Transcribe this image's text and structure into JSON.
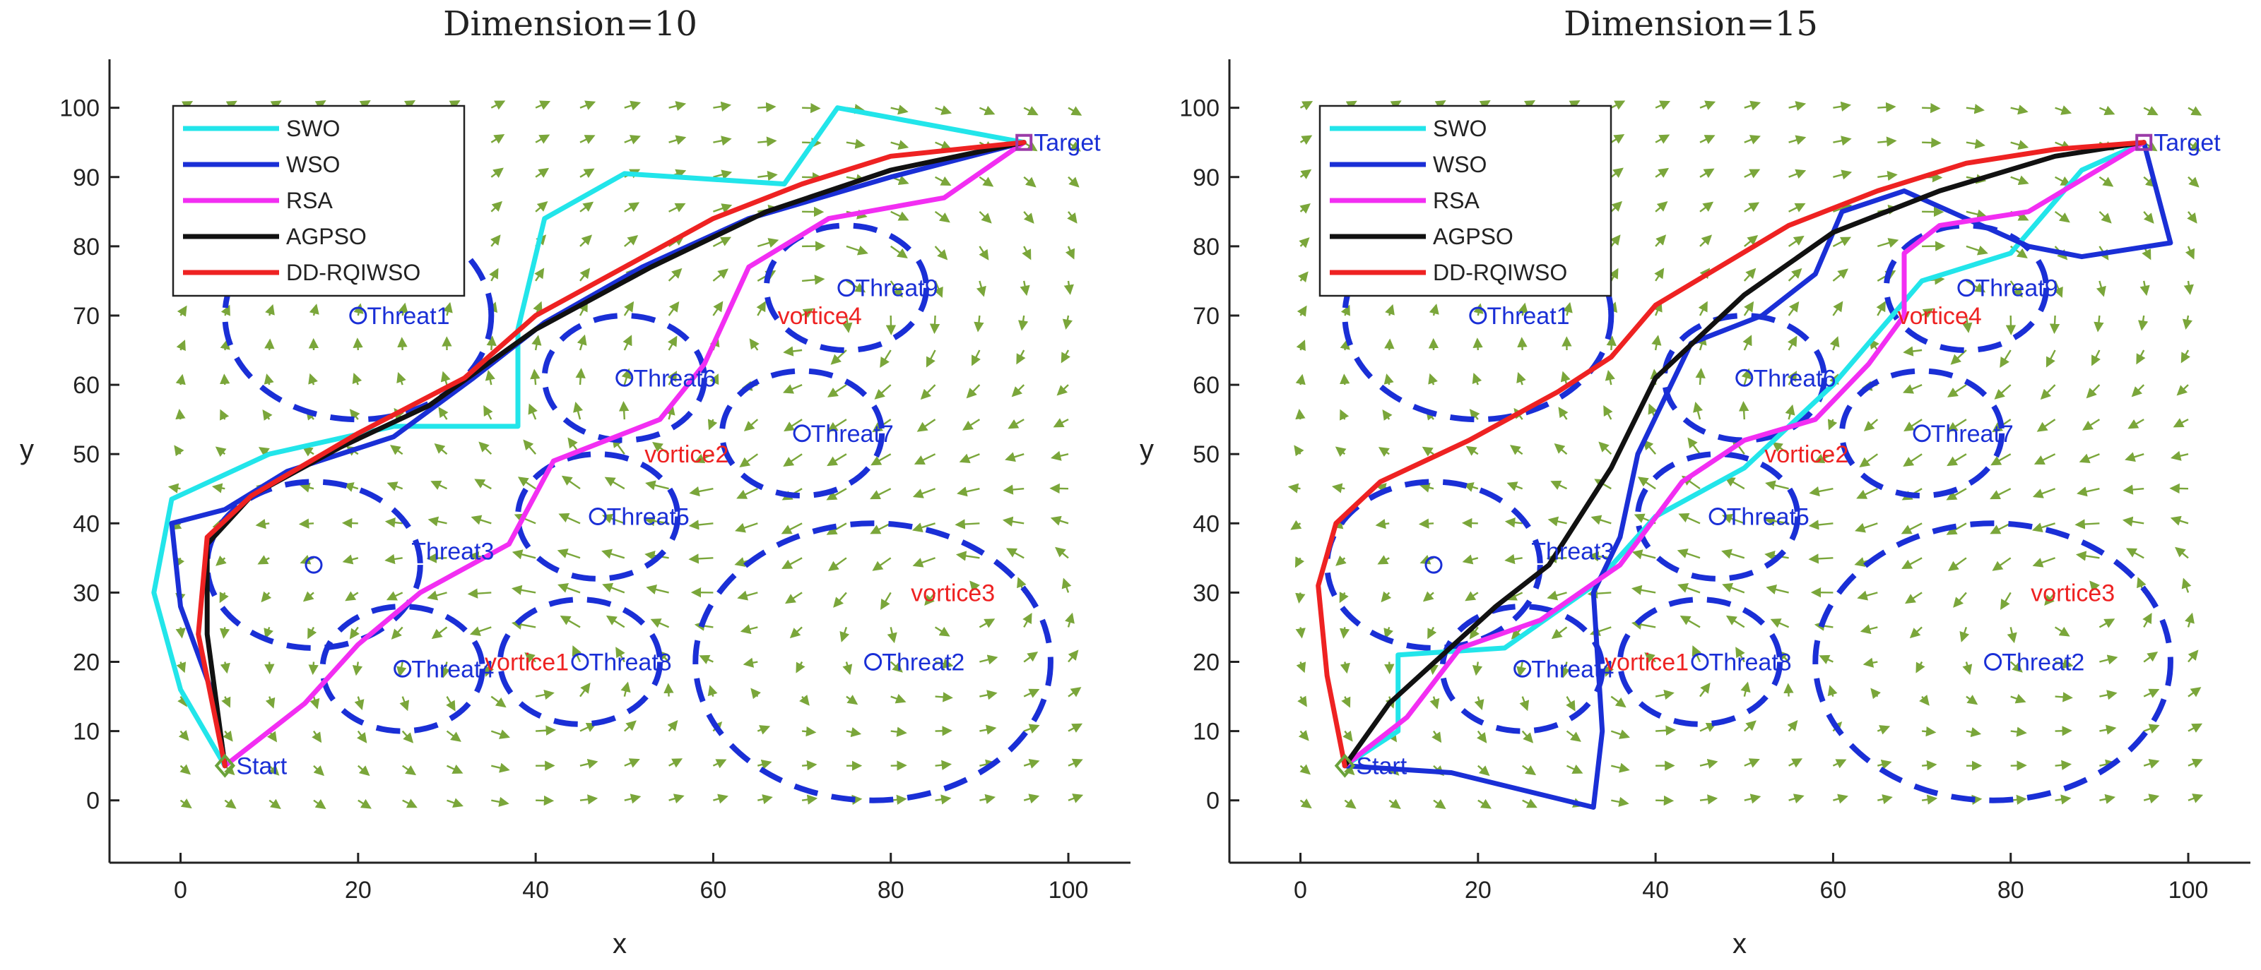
{
  "chart_data": [
    {
      "type": "line",
      "title": "Dimension=10",
      "xlabel": "x",
      "ylabel": "y",
      "xlim": [
        -8,
        107
      ],
      "ylim": [
        -9,
        107
      ],
      "xticks": [
        0,
        20,
        40,
        60,
        80,
        100
      ],
      "yticks": [
        0,
        10,
        20,
        30,
        40,
        50,
        60,
        70,
        80,
        90,
        100
      ],
      "start": {
        "label": "Start",
        "x": 5,
        "y": 5
      },
      "target": {
        "label": "Target",
        "x": 95,
        "y": 95
      },
      "threats": [
        {
          "label": "Threat1",
          "x": 20,
          "y": 70,
          "r": 15,
          "label_dx": 1
        },
        {
          "label": "Threat2",
          "x": 78,
          "y": 20,
          "r": 20,
          "label_dx": 1
        },
        {
          "label": "Threat3",
          "x": 15,
          "y": 34,
          "r": 12,
          "label_dx": 11,
          "label_dy": 2
        },
        {
          "label": "Threat4",
          "x": 25,
          "y": 19,
          "r": 9,
          "label_dx": 1
        },
        {
          "label": "Threat5",
          "x": 47,
          "y": 41,
          "r": 9,
          "label_dx": 1
        },
        {
          "label": "Threat6",
          "x": 50,
          "y": 61,
          "r": 9,
          "label_dx": 1
        },
        {
          "label": "Threat7",
          "x": 70,
          "y": 53,
          "r": 9,
          "label_dx": 1
        },
        {
          "label": "Threat8",
          "x": 45,
          "y": 20,
          "r": 9,
          "label_dx": 1
        },
        {
          "label": "Threat9",
          "x": 75,
          "y": 74,
          "r": 9,
          "label_dx": 1
        }
      ],
      "vortices": [
        {
          "label": "vortice1",
          "x": 39,
          "y": 20
        },
        {
          "label": "vortice2",
          "x": 57,
          "y": 50
        },
        {
          "label": "vortice3",
          "x": 87,
          "y": 30
        },
        {
          "label": "vortice4",
          "x": 72,
          "y": 70
        }
      ],
      "legend": {
        "position": "top-left",
        "entries": [
          "SWO",
          "WSO",
          "RSA",
          "AGPSO",
          "DD-RQIWSO"
        ]
      },
      "series": [
        {
          "name": "SWO",
          "color": "#22e5ea",
          "points": [
            [
              5,
              5
            ],
            [
              0,
              16
            ],
            [
              -3,
              30
            ],
            [
              -1,
              43.5
            ],
            [
              10,
              50
            ],
            [
              24,
              54
            ],
            [
              38,
              54
            ],
            [
              38,
              68
            ],
            [
              41,
              84
            ],
            [
              50,
              90.5
            ],
            [
              68,
              89
            ],
            [
              74,
              100
            ],
            [
              95,
              95
            ]
          ]
        },
        {
          "name": "WSO",
          "color": "#1a2fd6",
          "points": [
            [
              5,
              5
            ],
            [
              4,
              14
            ],
            [
              0,
              28
            ],
            [
              -1,
              40
            ],
            [
              5,
              42
            ],
            [
              12,
              47.5
            ],
            [
              24,
              52.5
            ],
            [
              33,
              61
            ],
            [
              41,
              69
            ],
            [
              52,
              77
            ],
            [
              64,
              84
            ],
            [
              80,
              90
            ],
            [
              95,
              95
            ]
          ]
        },
        {
          "name": "RSA",
          "color": "#f22ef2",
          "points": [
            [
              5,
              5
            ],
            [
              14,
              14
            ],
            [
              20,
              22.5
            ],
            [
              27,
              30
            ],
            [
              37,
              37
            ],
            [
              42,
              49
            ],
            [
              50,
              53
            ],
            [
              54,
              55
            ],
            [
              59,
              63
            ],
            [
              64,
              77
            ],
            [
              73,
              84
            ],
            [
              86,
              87
            ],
            [
              95,
              95
            ]
          ]
        },
        {
          "name": "AGPSO",
          "color": "#111111",
          "points": [
            [
              5,
              5
            ],
            [
              3,
              24
            ],
            [
              3,
              37
            ],
            [
              8,
              44
            ],
            [
              18,
              51
            ],
            [
              28,
              57
            ],
            [
              40,
              68
            ],
            [
              53,
              77
            ],
            [
              66,
              85
            ],
            [
              80,
              91
            ],
            [
              95,
              95
            ]
          ]
        },
        {
          "name": "DD-RQIWSO",
          "color": "#ee2222",
          "points": [
            [
              5,
              5
            ],
            [
              2,
              24
            ],
            [
              3,
              38
            ],
            [
              8,
              44
            ],
            [
              20,
              53
            ],
            [
              32,
              61
            ],
            [
              40,
              70
            ],
            [
              50,
              77
            ],
            [
              60,
              84
            ],
            [
              70,
              89
            ],
            [
              80,
              93
            ],
            [
              95,
              95
            ]
          ]
        }
      ]
    },
    {
      "type": "line",
      "title": "Dimension=15",
      "xlabel": "x",
      "ylabel": "y",
      "xlim": [
        -8,
        107
      ],
      "ylim": [
        -9,
        107
      ],
      "xticks": [
        0,
        20,
        40,
        60,
        80,
        100
      ],
      "yticks": [
        0,
        10,
        20,
        30,
        40,
        50,
        60,
        70,
        80,
        90,
        100
      ],
      "start": {
        "label": "Start",
        "x": 5,
        "y": 5
      },
      "target": {
        "label": "Target",
        "x": 95,
        "y": 95
      },
      "threats": [
        {
          "label": "Threat1",
          "x": 20,
          "y": 70,
          "r": 15,
          "label_dx": 1
        },
        {
          "label": "Threat2",
          "x": 78,
          "y": 20,
          "r": 20,
          "label_dx": 1
        },
        {
          "label": "Threat3",
          "x": 15,
          "y": 34,
          "r": 12,
          "label_dx": 11,
          "label_dy": 2
        },
        {
          "label": "Threat4",
          "x": 25,
          "y": 19,
          "r": 9,
          "label_dx": 1
        },
        {
          "label": "Threat5",
          "x": 47,
          "y": 41,
          "r": 9,
          "label_dx": 1
        },
        {
          "label": "Threat6",
          "x": 50,
          "y": 61,
          "r": 9,
          "label_dx": 1
        },
        {
          "label": "Threat7",
          "x": 70,
          "y": 53,
          "r": 9,
          "label_dx": 1
        },
        {
          "label": "Threat8",
          "x": 45,
          "y": 20,
          "r": 9,
          "label_dx": 1
        },
        {
          "label": "Threat9",
          "x": 75,
          "y": 74,
          "r": 9,
          "label_dx": 1
        }
      ],
      "vortices": [
        {
          "label": "vortice1",
          "x": 39,
          "y": 20
        },
        {
          "label": "vortice2",
          "x": 57,
          "y": 50
        },
        {
          "label": "vortice3",
          "x": 87,
          "y": 30
        },
        {
          "label": "vortice4",
          "x": 72,
          "y": 70
        }
      ],
      "legend": {
        "position": "top-left",
        "entries": [
          "SWO",
          "WSO",
          "RSA",
          "AGPSO",
          "DD-RQIWSO"
        ]
      },
      "series": [
        {
          "name": "SWO",
          "color": "#22e5ea",
          "points": [
            [
              5,
              5
            ],
            [
              11,
              10
            ],
            [
              11,
              21
            ],
            [
              23,
              22
            ],
            [
              33,
              31
            ],
            [
              40,
              41
            ],
            [
              50,
              48
            ],
            [
              60,
              60
            ],
            [
              70,
              75
            ],
            [
              80,
              79
            ],
            [
              88,
              91
            ],
            [
              95,
              95
            ]
          ]
        },
        {
          "name": "WSO",
          "color": "#1a2fd6",
          "points": [
            [
              5,
              5
            ],
            [
              17,
              4
            ],
            [
              33,
              -1
            ],
            [
              34,
              10
            ],
            [
              33,
              30
            ],
            [
              36,
              38
            ],
            [
              38,
              50
            ],
            [
              44,
              66
            ],
            [
              52,
              70
            ],
            [
              58,
              76
            ],
            [
              61,
              85
            ],
            [
              68,
              88
            ],
            [
              82,
              80
            ],
            [
              88,
              78.5
            ],
            [
              98,
              80.5
            ],
            [
              95,
              95
            ]
          ]
        },
        {
          "name": "RSA",
          "color": "#f22ef2",
          "points": [
            [
              5,
              5
            ],
            [
              12,
              12
            ],
            [
              18,
              22
            ],
            [
              27,
              26
            ],
            [
              36,
              34
            ],
            [
              43,
              46
            ],
            [
              50,
              52
            ],
            [
              58,
              55
            ],
            [
              64,
              63
            ],
            [
              68,
              70
            ],
            [
              68,
              79
            ],
            [
              72,
              83
            ],
            [
              82,
              85
            ],
            [
              95,
              95
            ]
          ]
        },
        {
          "name": "AGPSO",
          "color": "#111111",
          "points": [
            [
              5,
              5
            ],
            [
              10,
              14
            ],
            [
              16,
              21
            ],
            [
              22,
              28
            ],
            [
              28,
              34
            ],
            [
              35,
              48
            ],
            [
              40,
              61
            ],
            [
              50,
              73
            ],
            [
              60,
              82
            ],
            [
              72,
              88
            ],
            [
              85,
              93
            ],
            [
              95,
              95
            ]
          ]
        },
        {
          "name": "DD-RQIWSO",
          "color": "#ee2222",
          "points": [
            [
              5,
              5
            ],
            [
              3,
              18
            ],
            [
              2,
              31
            ],
            [
              4,
              40
            ],
            [
              9,
              46
            ],
            [
              19,
              52
            ],
            [
              29,
              59
            ],
            [
              35,
              64
            ],
            [
              40,
              71.5
            ],
            [
              55,
              83
            ],
            [
              65,
              88
            ],
            [
              75,
              92
            ],
            [
              85,
              94
            ],
            [
              95,
              95
            ]
          ]
        }
      ]
    }
  ]
}
